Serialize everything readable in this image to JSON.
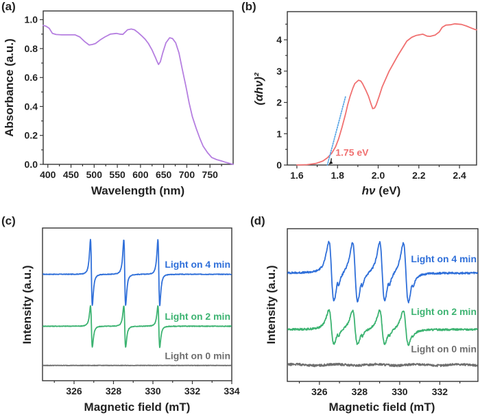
{
  "figure": {
    "panels": [
      "(a)",
      "(b)",
      "(c)",
      "(d)"
    ]
  },
  "chart_data": [
    {
      "id": "a",
      "type": "line",
      "panel_label": "(a)",
      "title": "",
      "xlabel": "Wavelength (nm)",
      "ylabel": "Absorbance (a.u.)",
      "xlim": [
        390,
        800
      ],
      "ylim": [
        0,
        1.06
      ],
      "xticks": [
        400,
        450,
        500,
        550,
        600,
        650,
        700,
        750
      ],
      "xtick_labels": [
        "400",
        "450",
        "500",
        "550",
        "600",
        "650",
        "700",
        "750"
      ],
      "xminor": [
        425,
        475,
        525,
        575,
        625,
        675,
        725,
        775
      ],
      "yticks": [
        0.0,
        0.2,
        0.4,
        0.6,
        0.8,
        1.0
      ],
      "ytick_labels": [
        "0.0",
        "0.2",
        "0.4",
        "0.6",
        "0.8",
        "1.0"
      ],
      "yminor": [
        0.1,
        0.3,
        0.5,
        0.7,
        0.9
      ],
      "grid": false,
      "series": [
        {
          "name": "Absorbance",
          "color": "#b57ee0",
          "x": [
            390,
            396,
            403,
            410,
            418,
            430,
            445,
            459,
            469,
            479,
            489,
            496,
            503,
            513,
            523,
            535,
            548,
            555,
            562,
            572,
            580,
            587,
            595,
            602,
            610,
            617,
            625,
            632,
            636,
            639,
            643,
            648,
            655,
            663,
            669,
            676,
            683,
            690,
            698,
            705,
            712,
            720,
            728,
            735,
            745,
            754,
            764,
            774,
            785,
            796,
            800
          ],
          "y": [
            0.96,
            0.955,
            0.94,
            0.905,
            0.897,
            0.895,
            0.895,
            0.895,
            0.88,
            0.85,
            0.825,
            0.828,
            0.835,
            0.86,
            0.88,
            0.9,
            0.905,
            0.9,
            0.898,
            0.93,
            0.935,
            0.93,
            0.91,
            0.89,
            0.865,
            0.835,
            0.79,
            0.74,
            0.71,
            0.69,
            0.71,
            0.77,
            0.84,
            0.875,
            0.87,
            0.84,
            0.77,
            0.66,
            0.54,
            0.425,
            0.33,
            0.25,
            0.18,
            0.127,
            0.08,
            0.047,
            0.033,
            0.024,
            0.013,
            0.003,
            0.0
          ]
        }
      ]
    },
    {
      "id": "b",
      "type": "line",
      "panel_label": "(b)",
      "title": "",
      "xlabel": "hν (eV)",
      "xlabel_italic": "hν",
      "xlabel_rest": " (eV)",
      "ylabel": "(αhν)²",
      "xlim": [
        1.553,
        2.484
      ],
      "ylim": [
        0,
        4.9
      ],
      "xticks": [
        1.6,
        1.8,
        2.0,
        2.2,
        2.4
      ],
      "xtick_labels": [
        "1.6",
        "1.8",
        "2.0",
        "2.2",
        "2.4"
      ],
      "xminor": [
        1.7,
        1.9,
        2.1,
        2.3
      ],
      "yticks": [
        0,
        1,
        2,
        3,
        4
      ],
      "ytick_labels": [
        "0",
        "1",
        "2",
        "3",
        "4"
      ],
      "yminor": [
        0.5,
        1.5,
        2.5,
        3.5,
        4.5
      ],
      "grid": false,
      "series": [
        {
          "name": "(αhν)²",
          "color": "#f07070",
          "x": [
            1.6,
            1.65,
            1.694,
            1.728,
            1.75,
            1.772,
            1.79,
            1.805,
            1.822,
            1.839,
            1.85,
            1.862,
            1.875,
            1.885,
            1.903,
            1.915,
            1.923,
            1.94,
            1.952,
            1.965,
            1.973,
            1.982,
            1.99,
            2.005,
            2.02,
            2.054,
            2.097,
            2.141,
            2.165,
            2.187,
            2.22,
            2.24,
            2.255,
            2.28,
            2.3,
            2.315,
            2.333,
            2.355,
            2.377,
            2.41,
            2.434,
            2.46,
            2.477,
            2.484
          ],
          "y": [
            0.0,
            0.01,
            0.05,
            0.13,
            0.23,
            0.38,
            0.58,
            0.83,
            1.2,
            1.62,
            1.92,
            2.2,
            2.45,
            2.6,
            2.71,
            2.68,
            2.6,
            2.38,
            2.2,
            1.95,
            1.8,
            1.82,
            1.92,
            2.2,
            2.5,
            3.0,
            3.5,
            3.96,
            4.08,
            4.14,
            4.18,
            4.12,
            4.11,
            4.15,
            4.25,
            4.4,
            4.47,
            4.48,
            4.51,
            4.49,
            4.44,
            4.37,
            4.33,
            4.32
          ]
        },
        {
          "name": "linear fit",
          "color": "#5aa6e6",
          "style": "dotted",
          "x": [
            1.75,
            1.84
          ],
          "y": [
            0.0,
            2.2
          ]
        }
      ],
      "annotations": [
        {
          "text": "1.75 eV",
          "color": "#f07070",
          "x": 1.79,
          "y": 0.3,
          "arrow_to": [
            1.757,
            0.02
          ],
          "arrow_from": [
            1.79,
            0.28
          ]
        }
      ]
    },
    {
      "id": "c",
      "type": "line",
      "panel_label": "(c)",
      "title": "",
      "xlabel": "Magnetic field (mT)",
      "ylabel": "Intensity (a.u.)",
      "xlim": [
        324.4,
        334
      ],
      "ylim": [
        0,
        1
      ],
      "xticks": [
        326,
        328,
        330,
        332,
        334
      ],
      "xtick_labels": [
        "326",
        "328",
        "330",
        "332",
        "334"
      ],
      "xminor": [
        325,
        327,
        329,
        331,
        333
      ],
      "yticks": [],
      "grid": false,
      "series": [
        {
          "name": "Light on 4 min",
          "color": "#2f6fd9",
          "baseline": 0.697,
          "kind": "triplet_sharp",
          "centers": [
            326.88,
            328.57,
            330.3
          ],
          "amp_up": 0.228,
          "amp_down": 0.205,
          "width": 0.08
        },
        {
          "name": "Light on 2 min",
          "color": "#3cb371",
          "baseline": 0.357,
          "kind": "triplet_sharp",
          "centers": [
            326.88,
            328.57,
            330.3
          ],
          "amp_up": 0.134,
          "amp_down": 0.138,
          "width": 0.08
        },
        {
          "name": "Light on 0 min",
          "color": "#6e6e6e",
          "baseline": 0.1,
          "kind": "flat"
        }
      ],
      "legend_labels": [
        "Light on 4 min",
        "Light on 2 min",
        "Light on 0 min"
      ]
    },
    {
      "id": "d",
      "type": "line",
      "panel_label": "(d)",
      "title": "",
      "xlabel": "Magnetic field (mT)",
      "ylabel": "Intensity (a.u.)",
      "xlim": [
        324.4,
        333.9
      ],
      "ylim": [
        0,
        1
      ],
      "xticks": [
        326,
        328,
        330,
        332
      ],
      "xtick_labels": [
        "326",
        "328",
        "330",
        "332"
      ],
      "xminor": [
        325,
        327,
        329,
        331,
        333
      ],
      "yticks": [],
      "grid": false,
      "series": [
        {
          "name": "Light on 4 min",
          "color": "#2f6fd9",
          "baseline": 0.71,
          "kind": "quartet",
          "centers": [
            326.6,
            327.78,
            329.13,
            330.31
          ],
          "amp_up": 0.2,
          "amp_down": 0.19,
          "width": 0.22
        },
        {
          "name": "Light on 2 min",
          "color": "#3cb371",
          "baseline": 0.34,
          "kind": "quartet",
          "centers": [
            326.6,
            327.78,
            329.13,
            330.31
          ],
          "amp_up": 0.125,
          "amp_down": 0.1,
          "width": 0.22
        },
        {
          "name": "Light on 0 min",
          "color": "#6e6e6e",
          "baseline": 0.108,
          "kind": "noise"
        }
      ],
      "legend_labels": [
        "Light on 4 min",
        "Light on 2 min",
        "Light on 0 min"
      ]
    }
  ]
}
